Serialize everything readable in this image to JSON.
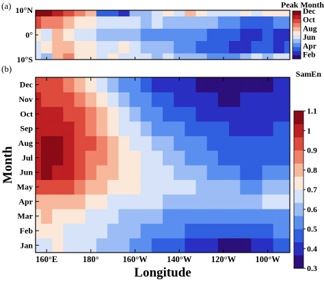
{
  "colors": {
    "scale": [
      "#2b0f7a",
      "#2a2fc4",
      "#3060e0",
      "#5a8ff0",
      "#9bbcf5",
      "#d6e3f8",
      "#fbe8d8",
      "#f7b89c",
      "#f0826a",
      "#de4a3c",
      "#bd1f22",
      "#8a0a16"
    ]
  },
  "chart_data": [
    {
      "panel_label": "(a)",
      "type": "heatmap",
      "title": "",
      "xlabel": "",
      "ylabel": "",
      "xlim": [
        155,
        270
      ],
      "ylim": [
        -10,
        10
      ],
      "ytick_labels": [
        "10°N",
        "0°",
        "10°S"
      ],
      "yticks": [
        10,
        0,
        -10
      ],
      "colorbar": {
        "title": "Peak Month",
        "tick_labels": [
          "Dec",
          "Oct",
          "Aug",
          "Jun",
          "Apr",
          "Feb"
        ],
        "tick_values": [
          12,
          10,
          8,
          6,
          4,
          2
        ],
        "range": [
          1,
          12
        ]
      },
      "lon": [
        155,
        160,
        165,
        170,
        175,
        180,
        185,
        190,
        195,
        200,
        205,
        210,
        215,
        220,
        225,
        230,
        235,
        240,
        245,
        250,
        255,
        260,
        265,
        270
      ],
      "lat": [
        10,
        5,
        0,
        -5,
        -10
      ],
      "values": [
        [
          12,
          12,
          11,
          10,
          9,
          8,
          3,
          3,
          2,
          5,
          5,
          6,
          7,
          6,
          8,
          7,
          6,
          6,
          6,
          7,
          6,
          7,
          7,
          7
        ],
        [
          10,
          9,
          9,
          8,
          7,
          7,
          6,
          6,
          6,
          6,
          5,
          6,
          5,
          5,
          5,
          5,
          5,
          4,
          4,
          3,
          3,
          3,
          4,
          4
        ],
        [
          7,
          6,
          8,
          7,
          6,
          6,
          5,
          5,
          5,
          5,
          4,
          4,
          4,
          4,
          4,
          4,
          3,
          3,
          3,
          2,
          2,
          3,
          2,
          2
        ],
        [
          6,
          7,
          8,
          8,
          7,
          7,
          6,
          6,
          7,
          6,
          5,
          5,
          5,
          4,
          4,
          3,
          3,
          3,
          2,
          2,
          3,
          3,
          2,
          3
        ],
        [
          6,
          5,
          8,
          9,
          7,
          7,
          6,
          7,
          6,
          6,
          6,
          5,
          6,
          5,
          5,
          5,
          4,
          4,
          4,
          5,
          6,
          5,
          6,
          6
        ]
      ]
    },
    {
      "panel_label": "(b)",
      "type": "heatmap",
      "title": "",
      "xlabel": "Longitude",
      "ylabel": "Month",
      "xlim": [
        155,
        270
      ],
      "xtick_labels": [
        "160°E",
        "180°",
        "160°W",
        "140°W",
        "120°W",
        "100°W"
      ],
      "xticks": [
        160,
        180,
        200,
        220,
        240,
        260
      ],
      "ytick_labels": [
        "Jan",
        "Feb",
        "Mar",
        "Apr",
        "May",
        "Jun",
        "Jul",
        "Aug",
        "Sep",
        "Oct",
        "Nov",
        "Dec"
      ],
      "yticks": [
        1,
        2,
        3,
        4,
        5,
        6,
        7,
        8,
        9,
        10,
        11,
        12
      ],
      "colorbar": {
        "title": "SamEn",
        "tick_labels": [
          "1.1",
          "1",
          "0.9",
          "0.8",
          "0.7",
          "0.6",
          "0.5",
          "0.4",
          "0.3"
        ],
        "tick_values": [
          1.1,
          1.0,
          0.9,
          0.8,
          0.7,
          0.6,
          0.5,
          0.4,
          0.3
        ],
        "range": [
          0.3,
          1.1
        ]
      },
      "lon": [
        155,
        160,
        165,
        170,
        175,
        180,
        185,
        190,
        195,
        200,
        205,
        210,
        215,
        220,
        225,
        230,
        235,
        240,
        245,
        250,
        255,
        260,
        265,
        270
      ],
      "month": [
        1,
        2,
        3,
        4,
        5,
        6,
        7,
        8,
        9,
        10,
        11,
        12
      ],
      "values": [
        [
          0.7,
          0.7,
          0.72,
          0.7,
          0.68,
          0.65,
          0.62,
          0.6,
          0.58,
          0.55,
          0.52,
          0.48,
          0.46,
          0.44,
          0.42,
          0.4,
          0.38,
          0.36,
          0.35,
          0.36,
          0.38,
          0.4,
          0.44,
          0.45
        ],
        [
          0.74,
          0.75,
          0.72,
          0.7,
          0.68,
          0.66,
          0.64,
          0.62,
          0.6,
          0.58,
          0.56,
          0.54,
          0.52,
          0.5,
          0.48,
          0.46,
          0.45,
          0.44,
          0.44,
          0.45,
          0.46,
          0.48,
          0.5,
          0.5
        ],
        [
          0.75,
          0.78,
          0.76,
          0.74,
          0.72,
          0.7,
          0.66,
          0.64,
          0.62,
          0.6,
          0.58,
          0.57,
          0.56,
          0.55,
          0.54,
          0.53,
          0.52,
          0.52,
          0.52,
          0.53,
          0.54,
          0.55,
          0.56,
          0.56
        ],
        [
          0.8,
          0.82,
          0.82,
          0.8,
          0.78,
          0.75,
          0.72,
          0.7,
          0.68,
          0.66,
          0.65,
          0.64,
          0.63,
          0.62,
          0.61,
          0.6,
          0.6,
          0.6,
          0.61,
          0.62,
          0.63,
          0.64,
          0.64,
          0.64
        ],
        [
          0.92,
          0.95,
          0.93,
          0.9,
          0.86,
          0.82,
          0.78,
          0.75,
          0.73,
          0.71,
          0.7,
          0.69,
          0.68,
          0.66,
          0.64,
          0.62,
          0.6,
          0.58,
          0.57,
          0.56,
          0.56,
          0.57,
          0.58,
          0.58
        ],
        [
          1.0,
          1.05,
          1.02,
          0.98,
          0.92,
          0.86,
          0.82,
          0.78,
          0.75,
          0.72,
          0.7,
          0.68,
          0.66,
          0.63,
          0.6,
          0.57,
          0.54,
          0.52,
          0.5,
          0.48,
          0.48,
          0.5,
          0.52,
          0.52
        ],
        [
          1.02,
          1.08,
          1.06,
          1.02,
          0.95,
          0.88,
          0.84,
          0.8,
          0.76,
          0.72,
          0.68,
          0.65,
          0.62,
          0.58,
          0.55,
          0.52,
          0.5,
          0.48,
          0.46,
          0.45,
          0.45,
          0.47,
          0.48,
          0.48
        ],
        [
          1.02,
          1.06,
          1.06,
          1.03,
          0.96,
          0.9,
          0.85,
          0.8,
          0.74,
          0.7,
          0.65,
          0.62,
          0.58,
          0.55,
          0.52,
          0.5,
          0.48,
          0.46,
          0.45,
          0.44,
          0.44,
          0.45,
          0.46,
          0.46
        ],
        [
          1.0,
          1.02,
          1.02,
          1.0,
          0.94,
          0.88,
          0.82,
          0.76,
          0.7,
          0.65,
          0.6,
          0.56,
          0.53,
          0.5,
          0.48,
          0.46,
          0.45,
          0.44,
          0.43,
          0.42,
          0.42,
          0.43,
          0.44,
          0.44
        ],
        [
          1.0,
          1.0,
          0.98,
          0.96,
          0.92,
          0.86,
          0.8,
          0.72,
          0.66,
          0.6,
          0.55,
          0.52,
          0.48,
          0.46,
          0.44,
          0.43,
          0.42,
          0.41,
          0.4,
          0.4,
          0.4,
          0.41,
          0.42,
          0.42
        ],
        [
          0.98,
          0.96,
          0.94,
          0.9,
          0.86,
          0.8,
          0.74,
          0.66,
          0.6,
          0.54,
          0.5,
          0.47,
          0.44,
          0.42,
          0.4,
          0.38,
          0.37,
          0.36,
          0.36,
          0.37,
          0.38,
          0.39,
          0.4,
          0.4
        ],
        [
          0.95,
          0.92,
          0.9,
          0.86,
          0.8,
          0.74,
          0.68,
          0.6,
          0.55,
          0.5,
          0.46,
          0.43,
          0.41,
          0.39,
          0.37,
          0.35,
          0.34,
          0.33,
          0.33,
          0.34,
          0.35,
          0.36,
          0.37,
          0.37
        ]
      ]
    }
  ]
}
